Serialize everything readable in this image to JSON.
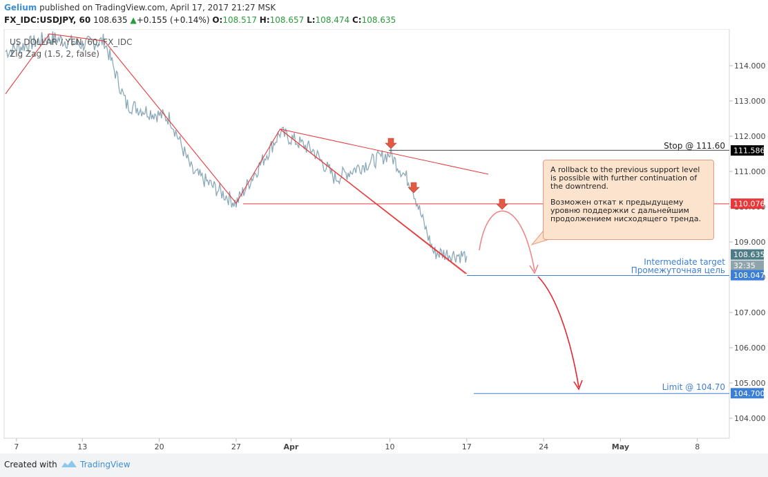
{
  "header": {
    "author": "Gelium",
    "published": "published on TradingView.com, April 17, 2017 21:27 MSK",
    "symbol": "FX_IDC:USDJPY, 60",
    "last": "108.635",
    "change": "+0.155 (+0.14%)",
    "open_label": "O:",
    "open": "108.517",
    "high_label": "H:",
    "high": "108.657",
    "low_label": "L:",
    "low": "108.474",
    "close_label": "C:",
    "close": "108.635"
  },
  "legend": {
    "title": "US DOLLAR / YEN, 60, FX_IDC",
    "indicator": "Zig Zag (1.5, 2, false)"
  },
  "annotations": {
    "stop_label": "Stop @ 111.60",
    "intermediate_en": "Intermediate target",
    "intermediate_ru": "Промежуточная цель",
    "limit_label": "Limit @ 104.70",
    "callout_en": "A rollback to the previous support level is possible with further continuation of the downtrend.",
    "callout_ru": "Возможен откат к предыдущему уровню поддержки с дальнейшим продолжением нисходящего тренда."
  },
  "footer": {
    "created": "Created with",
    "brand": "TradingView"
  },
  "colors": {
    "price": "#8aa9b8",
    "zigzag": "#e8393a",
    "support": "#e8393a",
    "target": "#3d7fd6",
    "stop_tag": "#000000",
    "arrow": "#e05a45",
    "callout_bg": "#fbe3cd",
    "callout_border": "#e79b7e"
  },
  "chart_data": {
    "type": "line",
    "title": "US DOLLAR / YEN, 60, FX_IDC",
    "x_ticks": [
      "7",
      "13",
      "20",
      "27",
      "Apr",
      "10",
      "17",
      "24",
      "May",
      "8"
    ],
    "y_ticks": [
      "114.000",
      "113.000",
      "112.000",
      "111.000",
      "110.000",
      "109.000",
      "108.000",
      "107.000",
      "106.000",
      "105.000",
      "104.000"
    ],
    "y_tick_values": [
      114,
      113,
      112,
      111,
      110,
      109,
      108,
      107,
      106,
      105,
      104
    ],
    "ylim": [
      103.2,
      115.0
    ],
    "price_tags": [
      {
        "label": "111.586",
        "value": 111.586,
        "color": "#000000"
      },
      {
        "label": "110.076",
        "value": 110.076,
        "color": "#e8393a"
      },
      {
        "label": "108.635",
        "value": 108.635,
        "color": "#4e7c86"
      },
      {
        "label": "32:35",
        "value": 108.32,
        "color": "#8fa4ab"
      },
      {
        "label": "108.047",
        "value": 108.047,
        "color": "#3d7fd6"
      },
      {
        "label": "104.700",
        "value": 104.7,
        "color": "#3d7fd6"
      }
    ],
    "zigzag": [
      {
        "x": "Mar 6",
        "y": 113.2
      },
      {
        "x": "Mar 10",
        "y": 114.9
      },
      {
        "x": "Mar 15",
        "y": 114.7
      },
      {
        "x": "Mar 27",
        "y": 110.1
      },
      {
        "x": "Mar 31",
        "y": 112.2
      },
      {
        "x": "Apr 17",
        "y": 108.1
      }
    ],
    "levels": [
      {
        "name": "Stop",
        "value": 111.6
      },
      {
        "name": "Support",
        "value": 110.08
      },
      {
        "name": "Intermediate target",
        "value": 108.05
      },
      {
        "name": "Limit",
        "value": 104.7
      }
    ],
    "price_series": {
      "x": [
        "Mar 6",
        "Mar 8",
        "Mar 10",
        "Mar 13",
        "Mar 15",
        "Mar 17",
        "Mar 21",
        "Mar 23",
        "Mar 27",
        "Mar 29",
        "Mar 31",
        "Apr 3",
        "Apr 5",
        "Apr 7",
        "Apr 10",
        "Apr 12",
        "Apr 13",
        "Apr 14",
        "Apr 17"
      ],
      "y": [
        114.4,
        114.6,
        114.8,
        114.6,
        114.7,
        112.9,
        112.5,
        111.0,
        110.1,
        111.1,
        112.1,
        111.6,
        110.8,
        111.1,
        111.5,
        110.6,
        109.6,
        108.7,
        108.6
      ]
    }
  }
}
